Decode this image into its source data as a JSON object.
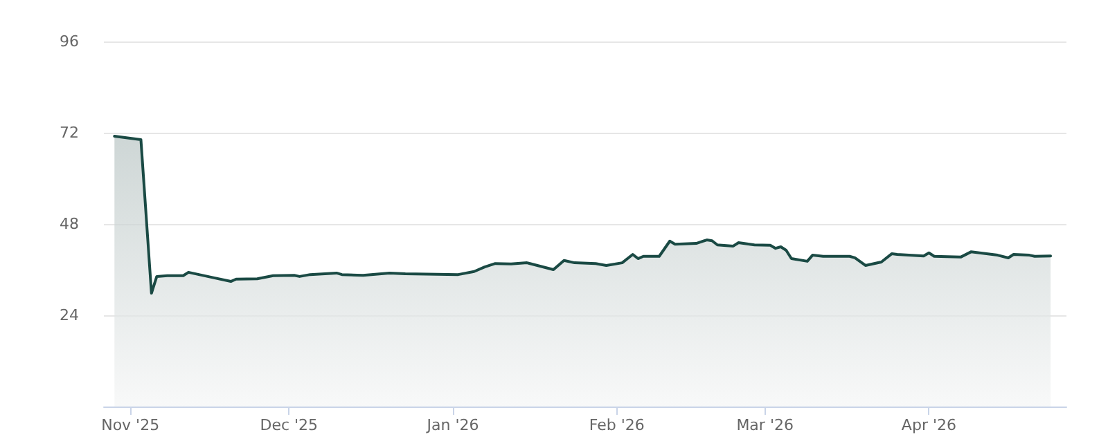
{
  "chart_data": {
    "type": "area",
    "x": [
      "2025-10-29",
      "2025-11-03",
      "2025-11-05",
      "2025-11-06",
      "2025-11-08",
      "2025-11-11",
      "2025-11-12",
      "2025-11-17",
      "2025-11-20",
      "2025-11-21",
      "2025-11-25",
      "2025-11-28",
      "2025-12-02",
      "2025-12-03",
      "2025-12-05",
      "2025-12-10",
      "2025-12-11",
      "2025-12-15",
      "2025-12-20",
      "2025-12-23",
      "2026-01-02",
      "2026-01-05",
      "2026-01-07",
      "2026-01-09",
      "2026-01-12",
      "2026-01-15",
      "2026-01-20",
      "2026-01-22",
      "2026-01-24",
      "2026-01-28",
      "2026-01-30",
      "2026-02-02",
      "2026-02-04",
      "2026-02-05",
      "2026-02-06",
      "2026-02-09",
      "2026-02-11",
      "2026-02-12",
      "2026-02-16",
      "2026-02-18",
      "2026-02-19",
      "2026-02-20",
      "2026-02-23",
      "2026-02-24",
      "2026-02-27",
      "2026-03-02",
      "2026-03-03",
      "2026-03-04",
      "2026-03-05",
      "2026-03-06",
      "2026-03-09",
      "2026-03-10",
      "2026-03-12",
      "2026-03-17",
      "2026-03-18",
      "2026-03-20",
      "2026-03-23",
      "2026-03-25",
      "2026-03-26",
      "2026-03-31",
      "2026-04-01",
      "2026-04-02",
      "2026-04-07",
      "2026-04-09",
      "2026-04-14",
      "2026-04-16",
      "2026-04-17",
      "2026-04-20",
      "2026-04-21",
      "2026-04-24"
    ],
    "series": [
      {
        "color": "#1a4a44",
        "values": [
          71.1,
          70.2,
          29.8,
          34.2,
          34.4,
          34.4,
          35.3,
          33.8,
          32.9,
          33.5,
          33.6,
          34.4,
          34.5,
          34.2,
          34.7,
          35.1,
          34.7,
          34.5,
          35.1,
          34.9,
          34.7,
          35.5,
          36.7,
          37.6,
          37.5,
          37.8,
          36.0,
          38.4,
          37.8,
          37.6,
          37.1,
          37.8,
          40.0,
          38.9,
          39.5,
          39.5,
          43.5,
          42.7,
          42.9,
          43.8,
          43.6,
          42.5,
          42.2,
          43.1,
          42.5,
          42.4,
          41.6,
          42.0,
          41.1,
          38.9,
          38.2,
          39.8,
          39.5,
          39.5,
          39.1,
          37.1,
          38.0,
          40.2,
          40.0,
          39.6,
          40.4,
          39.5,
          39.3,
          40.7,
          39.8,
          39.1,
          40.0,
          39.8,
          39.5,
          39.6
        ]
      }
    ],
    "xlim": [
      "2025-10-27",
      "2026-04-27"
    ],
    "xticks": [
      {
        "value": "2025-11-01",
        "label": "Nov '25"
      },
      {
        "value": "2025-12-01",
        "label": "Dec '25"
      },
      {
        "value": "2026-01-01",
        "label": "Jan '26"
      },
      {
        "value": "2026-02-01",
        "label": "Feb '26"
      },
      {
        "value": "2026-03-01",
        "label": "Mar '26"
      },
      {
        "value": "2026-04-01",
        "label": "Apr '26"
      }
    ],
    "ylim": [
      0,
      96
    ],
    "yticks": [
      24,
      48,
      72,
      96
    ],
    "grid": "y",
    "marker": "none"
  }
}
